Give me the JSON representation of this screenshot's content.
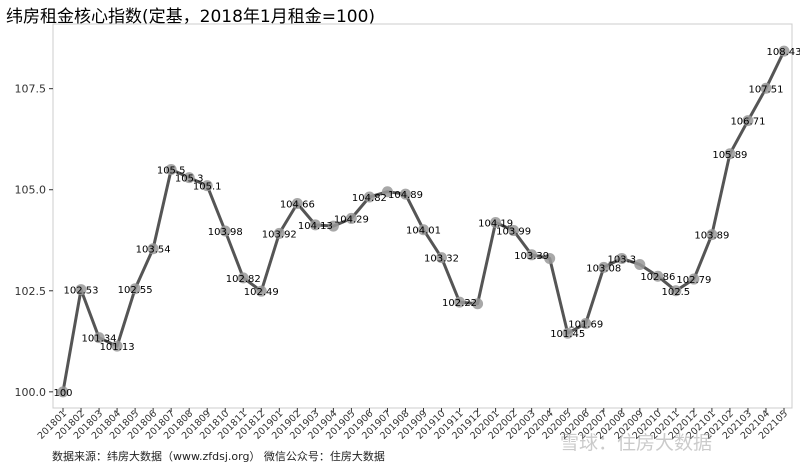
{
  "chart_data": {
    "type": "line",
    "title": "纬房租金核心指数(定基，2018年1月租金=100)",
    "xlabel": "",
    "ylabel": "",
    "ylim": [
      99.6,
      109.1
    ],
    "yticks": [
      100.0,
      102.5,
      105.0,
      107.5
    ],
    "ytick_labels": [
      "100.0",
      "102.5",
      "105.0",
      "107.5"
    ],
    "grid": false,
    "categories": [
      "201801",
      "201802",
      "201803",
      "201804",
      "201805",
      "201806",
      "201807",
      "201808",
      "201809",
      "201810",
      "201811",
      "201812",
      "201901",
      "201902",
      "201903",
      "201904",
      "201905",
      "201906",
      "201907",
      "201908",
      "201909",
      "201910",
      "201911",
      "201912",
      "202001",
      "202002",
      "202003",
      "202004",
      "202005",
      "202006",
      "202007",
      "202008",
      "202009",
      "202010",
      "202011",
      "202012",
      "202101",
      "202102",
      "202103",
      "202104",
      "202105"
    ],
    "series": [
      {
        "values": [
          100,
          102.53,
          101.34,
          101.13,
          102.55,
          103.54,
          105.5,
          105.3,
          105.1,
          103.98,
          102.82,
          102.49,
          103.92,
          104.66,
          104.13,
          104.1,
          104.29,
          104.82,
          104.95,
          104.89,
          104.01,
          103.32,
          102.22,
          102.18,
          104.19,
          103.99,
          103.39,
          103.3,
          101.45,
          101.69,
          103.08,
          103.3,
          103.15,
          102.86,
          102.5,
          102.79,
          103.89,
          105.89,
          106.71,
          107.51,
          108.43
        ],
        "labels": [
          "100",
          "102.53",
          "101.34",
          "101.13",
          "102.55",
          "103.54",
          "105.5",
          "105.3",
          "105.1",
          "103.98",
          "102.82",
          "102.49",
          "103.92",
          "104.66",
          "104.13",
          "",
          "104.29",
          "104.82",
          "",
          "104.89",
          "104.01",
          "103.32",
          "102.22",
          "",
          "104.19",
          "103.99",
          "103.39",
          "",
          "101.45",
          "101.69",
          "103.08",
          "103.3",
          "",
          "102.86",
          "102.5",
          "102.79",
          "103.89",
          "105.89",
          "106.71",
          "107.51",
          "108.43"
        ],
        "color": "#555555"
      }
    ]
  },
  "footer": "数据来源：纬房大数据（www.zfdsj.org）  微信公众号：住房大数据",
  "watermark": "雪球：住房大数据"
}
